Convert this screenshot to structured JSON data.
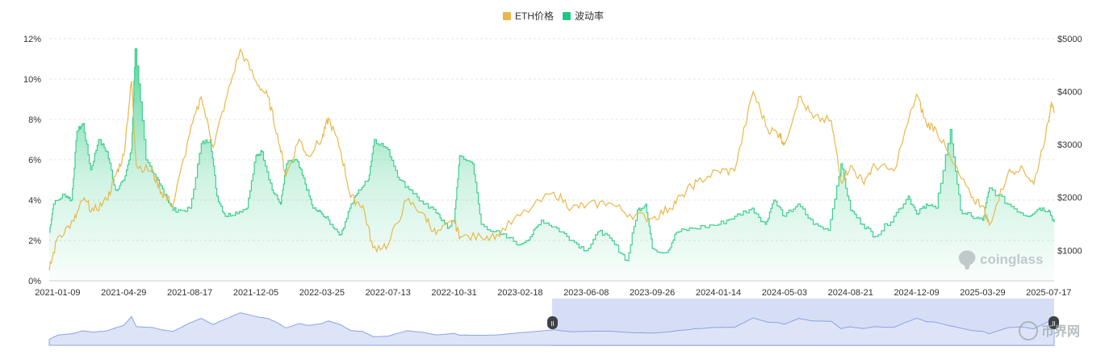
{
  "colors": {
    "eth_price": "#e8b84a",
    "volatility": "#3ecf8e",
    "volatility_fill_top": "#3ecf8e",
    "grid": "#e6e6e6",
    "axis_text": "#333333",
    "navigator_fill": "#dde4f7",
    "navigator_line": "#8aa3e6",
    "navigator_selection": "#c8d3f2"
  },
  "legend": {
    "items": [
      {
        "label": "ETH价格",
        "color": "#e8b84a"
      },
      {
        "label": "波动率",
        "color": "#1fc783"
      }
    ]
  },
  "watermark": {
    "brand": "coinglass",
    "corner_mark": "币界网"
  },
  "navigator": {
    "handle_left_label": "II",
    "handle_right_label": "II",
    "selection_start_fraction": 0.5
  },
  "chart_data": {
    "type": "line",
    "x_tick_labels": [
      "2021-01-09",
      "2021-04-29",
      "2021-08-17",
      "2021-12-05",
      "2022-03-25",
      "2022-07-13",
      "2022-10-31",
      "2023-02-18",
      "2023-06-08",
      "2023-09-26",
      "2024-01-14",
      "2024-05-03",
      "2024-08-21",
      "2024-12-09",
      "2025-03-29",
      "2025-07-17"
    ],
    "x_range": [
      "2020-12-26",
      "2025-07-26"
    ],
    "y_left": {
      "ticks": [
        "0%",
        "2%",
        "4%",
        "6%",
        "8%",
        "10%",
        "12%"
      ],
      "min": 0,
      "max": 12,
      "unit": "%"
    },
    "y_right": {
      "ticks": [
        "$1000",
        "$2000",
        "$3000",
        "$4000",
        "$5000"
      ],
      "min": 425,
      "max": 5000
    },
    "grid": "horizontal dashed",
    "legend_position": "top-center",
    "series": [
      {
        "name": "ETH价格",
        "axis": "right",
        "render": "line",
        "points": [
          [
            "2020-12-26",
            620
          ],
          [
            "2021-01-09",
            1250
          ],
          [
            "2021-02-05",
            1550
          ],
          [
            "2021-02-20",
            1950
          ],
          [
            "2021-03-10",
            1750
          ],
          [
            "2021-04-01",
            1950
          ],
          [
            "2021-04-15",
            2400
          ],
          [
            "2021-04-29",
            2800
          ],
          [
            "2021-05-12",
            4200
          ],
          [
            "2021-05-20",
            2600
          ],
          [
            "2021-06-15",
            2500
          ],
          [
            "2021-07-01",
            2100
          ],
          [
            "2021-07-20",
            1850
          ],
          [
            "2021-08-17",
            3200
          ],
          [
            "2021-09-05",
            3900
          ],
          [
            "2021-09-25",
            2950
          ],
          [
            "2021-10-15",
            3800
          ],
          [
            "2021-11-09",
            4800
          ],
          [
            "2021-12-05",
            4200
          ],
          [
            "2021-12-25",
            3900
          ],
          [
            "2022-01-10",
            3200
          ],
          [
            "2022-01-24",
            2400
          ],
          [
            "2022-02-15",
            3100
          ],
          [
            "2022-03-01",
            2800
          ],
          [
            "2022-03-25",
            3100
          ],
          [
            "2022-04-05",
            3500
          ],
          [
            "2022-04-25",
            2900
          ],
          [
            "2022-05-12",
            2000
          ],
          [
            "2022-06-01",
            1850
          ],
          [
            "2022-06-18",
            1050
          ],
          [
            "2022-07-13",
            1100
          ],
          [
            "2022-08-13",
            1950
          ],
          [
            "2022-09-10",
            1700
          ],
          [
            "2022-10-01",
            1300
          ],
          [
            "2022-10-31",
            1550
          ],
          [
            "2022-11-10",
            1250
          ],
          [
            "2022-12-15",
            1250
          ],
          [
            "2023-01-10",
            1300
          ],
          [
            "2023-02-18",
            1650
          ],
          [
            "2023-04-15",
            2100
          ],
          [
            "2023-05-15",
            1800
          ],
          [
            "2023-06-08",
            1850
          ],
          [
            "2023-07-15",
            1900
          ],
          [
            "2023-08-20",
            1680
          ],
          [
            "2023-09-26",
            1600
          ],
          [
            "2023-10-25",
            1800
          ],
          [
            "2023-11-15",
            2050
          ],
          [
            "2023-12-10",
            2300
          ],
          [
            "2024-01-14",
            2500
          ],
          [
            "2024-02-10",
            2500
          ],
          [
            "2024-03-12",
            4000
          ],
          [
            "2024-04-05",
            3300
          ],
          [
            "2024-04-25",
            3200
          ],
          [
            "2024-05-03",
            3000
          ],
          [
            "2024-05-27",
            3900
          ],
          [
            "2024-06-20",
            3500
          ],
          [
            "2024-07-20",
            3450
          ],
          [
            "2024-08-05",
            2300
          ],
          [
            "2024-08-21",
            2600
          ],
          [
            "2024-09-10",
            2300
          ],
          [
            "2024-10-01",
            2600
          ],
          [
            "2024-11-01",
            2500
          ],
          [
            "2024-12-09",
            3950
          ],
          [
            "2024-12-25",
            3400
          ],
          [
            "2025-01-10",
            3300
          ],
          [
            "2025-02-05",
            2700
          ],
          [
            "2025-03-10",
            2000
          ],
          [
            "2025-03-29",
            1850
          ],
          [
            "2025-04-09",
            1480
          ],
          [
            "2025-05-10",
            2450
          ],
          [
            "2025-06-01",
            2600
          ],
          [
            "2025-06-22",
            2250
          ],
          [
            "2025-07-17",
            3450
          ],
          [
            "2025-07-20",
            3750
          ],
          [
            "2025-07-26",
            3600
          ]
        ]
      },
      {
        "name": "波动率",
        "axis": "left",
        "render": "area",
        "points": [
          [
            "2020-12-26",
            2.4
          ],
          [
            "2021-01-02",
            3.8
          ],
          [
            "2021-01-20",
            4.3
          ],
          [
            "2021-02-01",
            4.0
          ],
          [
            "2021-02-10",
            7.4
          ],
          [
            "2021-02-20",
            7.8
          ],
          [
            "2021-03-05",
            5.5
          ],
          [
            "2021-03-18",
            7.0
          ],
          [
            "2021-04-01",
            6.4
          ],
          [
            "2021-04-15",
            4.5
          ],
          [
            "2021-04-29",
            5.0
          ],
          [
            "2021-05-12",
            6.5
          ],
          [
            "2021-05-18",
            11.5
          ],
          [
            "2021-06-05",
            6.0
          ],
          [
            "2021-06-25",
            5.0
          ],
          [
            "2021-07-10",
            4.0
          ],
          [
            "2021-07-25",
            3.4
          ],
          [
            "2021-08-17",
            3.6
          ],
          [
            "2021-09-05",
            6.8
          ],
          [
            "2021-09-20",
            7.0
          ],
          [
            "2021-10-01",
            4.2
          ],
          [
            "2021-10-15",
            3.2
          ],
          [
            "2021-11-01",
            3.4
          ],
          [
            "2021-11-20",
            3.6
          ],
          [
            "2021-12-05",
            6.2
          ],
          [
            "2021-12-15",
            6.4
          ],
          [
            "2022-01-01",
            4.5
          ],
          [
            "2022-01-15",
            3.8
          ],
          [
            "2022-01-25",
            5.8
          ],
          [
            "2022-02-10",
            6.0
          ],
          [
            "2022-02-25",
            4.8
          ],
          [
            "2022-03-10",
            3.6
          ],
          [
            "2022-03-25",
            3.3
          ],
          [
            "2022-04-10",
            2.8
          ],
          [
            "2022-04-25",
            2.3
          ],
          [
            "2022-05-10",
            3.6
          ],
          [
            "2022-05-25",
            4.5
          ],
          [
            "2022-06-10",
            5.0
          ],
          [
            "2022-06-20",
            7.0
          ],
          [
            "2022-07-13",
            6.5
          ],
          [
            "2022-08-01",
            5.0
          ],
          [
            "2022-08-20",
            4.5
          ],
          [
            "2022-09-10",
            3.8
          ],
          [
            "2022-10-05",
            3.3
          ],
          [
            "2022-10-20",
            2.6
          ],
          [
            "2022-10-31",
            3.0
          ],
          [
            "2022-11-09",
            6.2
          ],
          [
            "2022-12-01",
            5.8
          ],
          [
            "2022-12-15",
            2.8
          ],
          [
            "2023-01-15",
            2.3
          ],
          [
            "2023-02-18",
            1.8
          ],
          [
            "2023-03-10",
            2.3
          ],
          [
            "2023-03-25",
            3.0
          ],
          [
            "2023-04-20",
            2.6
          ],
          [
            "2023-05-15",
            2.0
          ],
          [
            "2023-06-08",
            1.5
          ],
          [
            "2023-07-01",
            2.5
          ],
          [
            "2023-07-25",
            1.8
          ],
          [
            "2023-08-15",
            1.0
          ],
          [
            "2023-09-01",
            3.5
          ],
          [
            "2023-09-15",
            3.8
          ],
          [
            "2023-09-26",
            1.6
          ],
          [
            "2023-10-20",
            1.4
          ],
          [
            "2023-11-05",
            2.4
          ],
          [
            "2023-12-01",
            2.6
          ],
          [
            "2024-01-14",
            2.8
          ],
          [
            "2024-02-10",
            3.2
          ],
          [
            "2024-03-10",
            3.6
          ],
          [
            "2024-04-01",
            2.8
          ],
          [
            "2024-04-15",
            4.0
          ],
          [
            "2024-05-03",
            3.2
          ],
          [
            "2024-05-25",
            3.8
          ],
          [
            "2024-06-20",
            2.8
          ],
          [
            "2024-07-15",
            2.5
          ],
          [
            "2024-08-05",
            5.8
          ],
          [
            "2024-08-21",
            3.5
          ],
          [
            "2024-09-10",
            2.8
          ],
          [
            "2024-10-01",
            2.2
          ],
          [
            "2024-11-01",
            3.2
          ],
          [
            "2024-11-25",
            4.2
          ],
          [
            "2024-12-09",
            3.3
          ],
          [
            "2024-12-25",
            3.8
          ],
          [
            "2025-01-10",
            3.6
          ],
          [
            "2025-02-03",
            7.5
          ],
          [
            "2025-02-20",
            3.5
          ],
          [
            "2025-03-10",
            3.2
          ],
          [
            "2025-03-29",
            3.0
          ],
          [
            "2025-04-09",
            4.6
          ],
          [
            "2025-05-10",
            3.8
          ],
          [
            "2025-06-10",
            3.2
          ],
          [
            "2025-07-01",
            3.6
          ],
          [
            "2025-07-17",
            3.5
          ],
          [
            "2025-07-26",
            2.9
          ]
        ]
      }
    ]
  }
}
